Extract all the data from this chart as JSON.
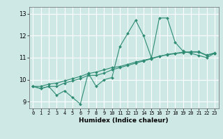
{
  "xlabel": "Humidex (Indice chaleur)",
  "bg_color": "#cde8e5",
  "line_color": "#2e8b74",
  "grid_color": "#ffffff",
  "xlim": [
    -0.5,
    23.5
  ],
  "ylim": [
    8.7,
    13.3
  ],
  "yticks": [
    9,
    10,
    11,
    12,
    13
  ],
  "xticks": [
    0,
    1,
    2,
    3,
    4,
    5,
    6,
    7,
    8,
    9,
    10,
    11,
    12,
    13,
    14,
    15,
    16,
    17,
    18,
    19,
    20,
    21,
    22,
    23
  ],
  "series": [
    [
      9.7,
      9.6,
      9.7,
      9.3,
      9.5,
      9.2,
      8.9,
      10.3,
      9.7,
      10.0,
      10.1,
      11.5,
      12.1,
      12.7,
      12.0,
      11.0,
      12.8,
      12.8,
      11.7,
      11.3,
      11.2,
      11.1,
      11.0,
      11.2
    ],
    [
      9.7,
      9.6,
      9.7,
      9.7,
      9.85,
      9.95,
      10.05,
      10.2,
      10.2,
      10.3,
      10.45,
      10.55,
      10.65,
      10.75,
      10.85,
      10.95,
      11.05,
      11.15,
      11.2,
      11.25,
      11.25,
      11.25,
      11.1,
      11.2
    ],
    [
      9.7,
      9.7,
      9.8,
      9.85,
      9.95,
      10.05,
      10.15,
      10.28,
      10.35,
      10.45,
      10.55,
      10.6,
      10.7,
      10.8,
      10.88,
      10.97,
      11.07,
      11.13,
      11.18,
      11.23,
      11.27,
      11.27,
      11.12,
      11.22
    ]
  ]
}
